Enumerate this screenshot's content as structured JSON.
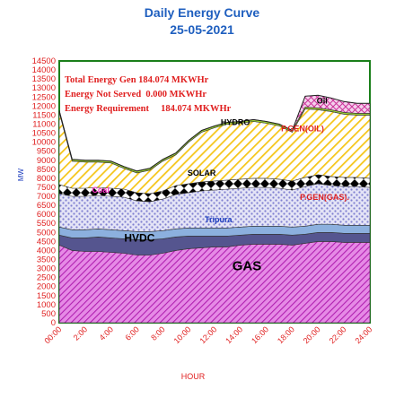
{
  "chart_data": {
    "type": "area",
    "title": "Daily Energy Curve",
    "subtitle": "25-05-2021",
    "xlabel": "HOUR",
    "ylabel": "MW",
    "ylim": [
      0,
      14500
    ],
    "ytick_step": 500,
    "x_ticks": [
      "00:00",
      "2:00",
      "4:00",
      "6:00",
      "8:00",
      "10:00",
      "12:00",
      "14:00",
      "16:00",
      "18:00",
      "20:00",
      "22:00",
      "24:00"
    ],
    "x": [
      0,
      1,
      2,
      3,
      4,
      5,
      6,
      7,
      8,
      9,
      10,
      11,
      12,
      13,
      14,
      15,
      16,
      17,
      18,
      19,
      20,
      21,
      22,
      23,
      24
    ],
    "stack_order": [
      "GAS",
      "HVDC",
      "Tripura",
      "P.GEN(GAS)",
      "SOLAR",
      "P.GEN(OIL)",
      "HYDRO",
      "Oil"
    ],
    "series": [
      {
        "name": "GAS",
        "color": "#cc33cc",
        "pattern": "hatch",
        "values": [
          4300,
          4000,
          3950,
          3950,
          3900,
          3850,
          3750,
          3750,
          3850,
          4000,
          4100,
          4150,
          4200,
          4200,
          4300,
          4350,
          4350,
          4350,
          4300,
          4400,
          4500,
          4500,
          4450,
          4450,
          4450
        ]
      },
      {
        "name": "HVDC",
        "color": "#4a4a8a",
        "pattern": "solid",
        "values": [
          550,
          700,
          750,
          800,
          800,
          800,
          850,
          850,
          800,
          750,
          700,
          650,
          600,
          600,
          550,
          550,
          550,
          550,
          550,
          500,
          500,
          500,
          500,
          500,
          500
        ]
      },
      {
        "name": "Tripura",
        "color": "#7fa8d8",
        "pattern": "solid",
        "values": [
          450,
          450,
          450,
          450,
          450,
          450,
          450,
          450,
          450,
          450,
          450,
          450,
          450,
          450,
          450,
          450,
          450,
          450,
          450,
          450,
          450,
          450,
          450,
          450,
          450
        ]
      },
      {
        "name": "P.GEN(GAS)",
        "color": "#a8a8e0",
        "pattern": "dots",
        "values": [
          1850,
          1850,
          1850,
          1850,
          1850,
          1850,
          1700,
          1650,
          1750,
          1900,
          1950,
          2050,
          2100,
          2150,
          2150,
          2150,
          2150,
          2100,
          2050,
          2200,
          2250,
          2150,
          2150,
          2150,
          2100
        ]
      },
      {
        "name": "SOLAR",
        "color": "#000000",
        "pattern": "diamonds",
        "values": [
          500,
          450,
          450,
          450,
          450,
          450,
          450,
          450,
          450,
          500,
          500,
          500,
          500,
          500,
          500,
          500,
          500,
          500,
          500,
          500,
          500,
          500,
          500,
          500,
          500
        ]
      },
      {
        "name": "P.GEN(OIL)",
        "color": "#f5c518",
        "pattern": "hatch",
        "values": [
          4000,
          1500,
          1450,
          1400,
          1400,
          1150,
          1100,
          1300,
          1650,
          1700,
          2300,
          2750,
          2950,
          3100,
          3100,
          3150,
          3050,
          2950,
          2700,
          3800,
          3600,
          3600,
          3500,
          3450,
          3500
        ]
      },
      {
        "name": "HYDRO",
        "color": "#9acd32",
        "pattern": "solid",
        "values": [
          100,
          100,
          100,
          100,
          100,
          100,
          100,
          100,
          100,
          100,
          100,
          100,
          100,
          100,
          100,
          100,
          100,
          100,
          100,
          100,
          100,
          100,
          100,
          100,
          100
        ]
      },
      {
        "name": "Oil",
        "color": "#cc3399",
        "pattern": "crosshatch",
        "values": [
          0,
          0,
          0,
          0,
          0,
          0,
          0,
          0,
          0,
          0,
          0,
          0,
          0,
          0,
          0,
          0,
          0,
          0,
          0,
          600,
          700,
          650,
          600,
          550,
          550
        ]
      }
    ],
    "labels": [
      {
        "text": "GAS",
        "x": 14.5,
        "y": 2900,
        "color": "#000000",
        "size": 15
      },
      {
        "text": "HVDC",
        "x": 6.2,
        "y": 4500,
        "color": "#000000",
        "size": 12
      },
      {
        "text": "Tripura",
        "x": 12.3,
        "y": 5550,
        "color": "#1f3fbf",
        "size": 9
      },
      {
        "text": "P.GEN(GAS).",
        "x": 20.5,
        "y": 6800,
        "color": "#e02020",
        "size": 9
      },
      {
        "text": "SOLAR",
        "x": 11.0,
        "y": 8150,
        "color": "#000000",
        "size": 9
      },
      {
        "text": "P.GEN(OIL)",
        "x": 18.8,
        "y": 10600,
        "color": "#e02020",
        "size": 9
      },
      {
        "text": "HYDRO",
        "x": 13.6,
        "y": 10950,
        "color": "#000000",
        "size": 9
      },
      {
        "text": "Oil",
        "x": 20.3,
        "y": 12150,
        "color": "#000000",
        "size": 9
      },
      {
        "text": "Coal",
        "x": 3.2,
        "y": 7200,
        "color": "#ff33cc",
        "size": 9
      }
    ],
    "annotations": [
      "Total Energy Gen 184.074 MKWHr",
      "Energy Not Served  0.000 MKWHr",
      "Energy Requirement     184.074 MKWHr"
    ],
    "grid": false,
    "legend": "none",
    "colors": {
      "plot_border": "#1a7f1a",
      "tick_text": "#e02020",
      "title": "#1f5fbf",
      "annotation": "#e02020"
    }
  }
}
